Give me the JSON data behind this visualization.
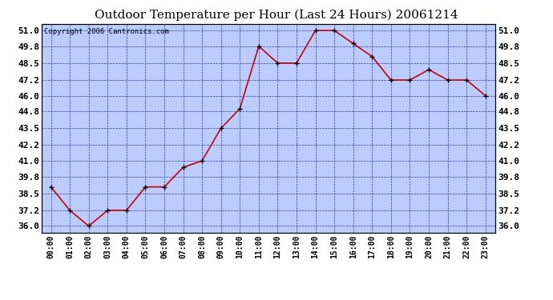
{
  "title": "Outdoor Temperature per Hour (Last 24 Hours) 20061214",
  "copyright_text": "Copyright 2006 Cantronics.com",
  "hours": [
    0,
    1,
    2,
    3,
    4,
    5,
    6,
    7,
    8,
    9,
    10,
    11,
    12,
    13,
    14,
    15,
    16,
    17,
    18,
    19,
    20,
    21,
    22,
    23
  ],
  "x_labels": [
    "00:00",
    "01:00",
    "02:00",
    "03:00",
    "04:00",
    "05:00",
    "06:00",
    "07:00",
    "08:00",
    "09:00",
    "10:00",
    "11:00",
    "12:00",
    "13:00",
    "14:00",
    "15:00",
    "16:00",
    "17:00",
    "18:00",
    "19:00",
    "20:00",
    "21:00",
    "22:00",
    "23:00"
  ],
  "temperatures": [
    39.0,
    37.2,
    36.0,
    37.2,
    37.2,
    39.0,
    39.0,
    40.5,
    41.0,
    43.5,
    45.0,
    49.8,
    48.5,
    48.5,
    51.0,
    51.0,
    50.0,
    49.0,
    47.2,
    47.2,
    48.0,
    47.2,
    47.2,
    46.0
  ],
  "ylim_min": 35.5,
  "ylim_max": 51.5,
  "yticks": [
    36.0,
    37.2,
    38.5,
    39.8,
    41.0,
    42.2,
    43.5,
    44.8,
    46.0,
    47.2,
    48.5,
    49.8,
    51.0
  ],
  "ytick_labels": [
    "36.0",
    "37.2",
    "38.5",
    "39.8",
    "41.0",
    "42.2",
    "43.5",
    "44.8",
    "46.0",
    "47.2",
    "48.5",
    "49.8",
    "51.0"
  ],
  "line_color": "#cc0000",
  "marker_color": "#000000",
  "bg_color": "#bbccff",
  "grid_color": "#3333cc",
  "title_fontsize": 11,
  "copyright_fontsize": 6.5,
  "xtick_fontsize": 7,
  "ytick_fontsize": 8,
  "fig_width": 6.9,
  "fig_height": 3.75,
  "dpi": 100
}
